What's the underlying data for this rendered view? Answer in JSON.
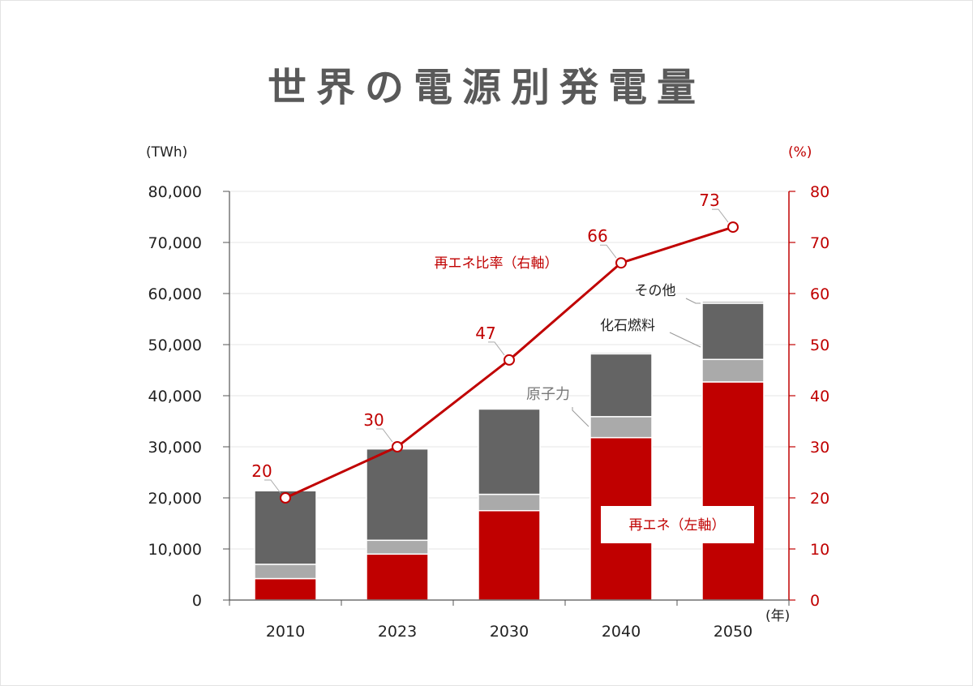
{
  "chart_data": {
    "type": "bar",
    "title": "世界の電源別発電量",
    "left_unit": "(TWh)",
    "right_unit": "(%)",
    "x_unit": "(年)",
    "categories": [
      "2010",
      "2023",
      "2030",
      "2040",
      "2050"
    ],
    "ylim": [
      0,
      80000
    ],
    "yticks": [
      "0",
      "10,000",
      "20,000",
      "30,000",
      "40,000",
      "50,000",
      "60,000",
      "70,000",
      "80,000"
    ],
    "y2lim": [
      0,
      80
    ],
    "y2ticks": [
      "0",
      "10",
      "20",
      "30",
      "40",
      "50",
      "60",
      "70",
      "80"
    ],
    "stack_series": [
      {
        "name": "再エネ（左軸）",
        "color": "#c00000",
        "values": [
          4200,
          9000,
          17500,
          31800,
          42700
        ]
      },
      {
        "name": "原子力",
        "color": "#aaaaaa",
        "values": [
          2800,
          2700,
          3200,
          4100,
          4400
        ]
      },
      {
        "name": "化石燃料",
        "color": "#646464",
        "values": [
          14400,
          17900,
          16700,
          12300,
          11000
        ]
      },
      {
        "name": "その他",
        "color": "#b4b4b4",
        "values": [
          100,
          150,
          150,
          300,
          400
        ]
      }
    ],
    "line_series": {
      "name": "再エネ比率（右軸）",
      "color": "#c00000",
      "values": [
        20,
        30,
        47,
        66,
        73
      ],
      "labels": [
        "20",
        "30",
        "47",
        "66",
        "73"
      ]
    }
  }
}
